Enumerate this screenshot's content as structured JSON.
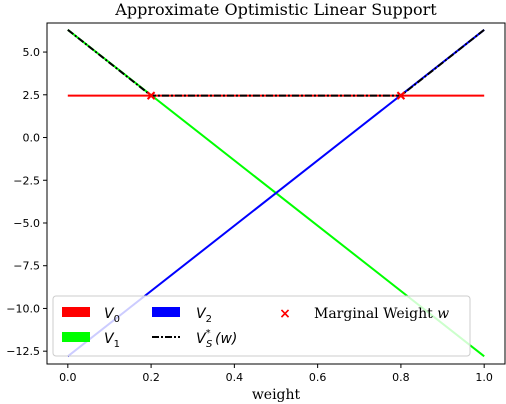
{
  "chart_data": {
    "type": "line",
    "title": "Approximate Optimistic Linear Support",
    "xlabel": "weight",
    "ylabel": "",
    "xlim": [
      -0.05,
      1.05
    ],
    "ylim": [
      -13.25,
      6.7
    ],
    "x_ticks": [
      0.0,
      0.2,
      0.4,
      0.6,
      0.8,
      1.0
    ],
    "x_tick_labels": [
      "0.0",
      "0.2",
      "0.4",
      "0.6",
      "0.8",
      "1.0"
    ],
    "y_ticks": [
      5.0,
      2.5,
      0.0,
      -2.5,
      -5.0,
      -7.5,
      -10.0,
      -12.5
    ],
    "y_tick_labels": [
      "5.0",
      "2.5",
      "0.0",
      "−2.5",
      "−5.0",
      "−7.5",
      "−10.0",
      "−12.5"
    ],
    "grid": false,
    "legend_position": "bottom",
    "series": [
      {
        "name": "V_0",
        "color": "#ff0000",
        "style": "solid",
        "x": [
          0.0,
          1.0
        ],
        "y": [
          2.45,
          2.45
        ]
      },
      {
        "name": "V_1",
        "color": "#00ff00",
        "style": "solid",
        "x": [
          0.0,
          1.0
        ],
        "y": [
          6.3,
          -12.8
        ]
      },
      {
        "name": "V_2",
        "color": "#0000ff",
        "style": "solid",
        "x": [
          0.0,
          1.0
        ],
        "y": [
          -12.8,
          6.3
        ]
      },
      {
        "name": "V_S^*(w)",
        "color": "#000000",
        "style": "dashdot",
        "x": [
          0.0,
          0.2,
          0.8,
          1.0
        ],
        "y": [
          6.3,
          2.45,
          2.45,
          6.3
        ]
      }
    ],
    "markers": {
      "name": "Marginal Weight w",
      "color": "#ff0000",
      "symbol": "x",
      "x": [
        0.2,
        0.8
      ],
      "y": [
        2.45,
        2.45
      ]
    }
  },
  "legend": {
    "v0_base": "V",
    "v0_sub": "0",
    "v1_base": "V",
    "v1_sub": "1",
    "v2_base": "V",
    "v2_sub": "2",
    "vs_base": "V",
    "vs_sup": "*",
    "vs_sub": "S",
    "vs_arg": "(w)",
    "marginal_text": "Marginal Weight ",
    "marginal_var": "w"
  }
}
